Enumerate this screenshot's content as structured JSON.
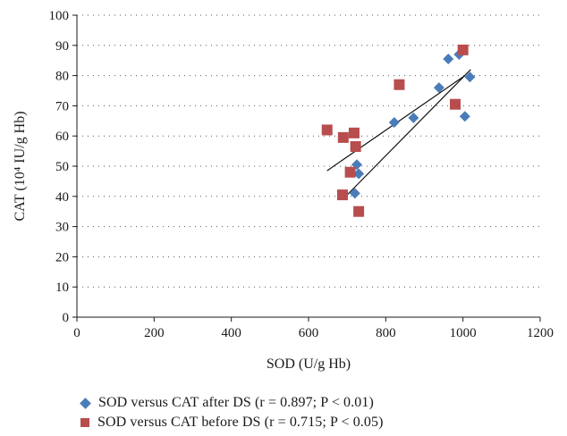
{
  "chart_data": {
    "type": "scatter",
    "xlabel": "SOD (U/g Hb)",
    "ylabel": "CAT (10⁴ IU/g Hb)",
    "xlim": [
      0,
      1200
    ],
    "ylim": [
      0,
      100
    ],
    "xticks": [
      "0",
      "200",
      "400",
      "600",
      "800",
      "1000",
      "1200"
    ],
    "yticks": [
      "0",
      "10",
      "20",
      "30",
      "40",
      "50",
      "60",
      "70",
      "80",
      "90",
      "100"
    ],
    "grid": "horizontal dotted",
    "legend_position": "bottom",
    "series": [
      {
        "name": "SOD versus CAT after DS (r = 0.897; P < 0.01)",
        "marker": "diamond",
        "color": "#4a7cb9",
        "points": [
          [
            720,
            41
          ],
          [
            725,
            50.5
          ],
          [
            730,
            47.5
          ],
          [
            822,
            64.5
          ],
          [
            872,
            66
          ],
          [
            938,
            76
          ],
          [
            962,
            85.5
          ],
          [
            990,
            87
          ],
          [
            1005,
            66.5
          ],
          [
            1018,
            79.5
          ]
        ],
        "trendline": [
          [
            700,
            40.5
          ],
          [
            1020,
            82
          ]
        ]
      },
      {
        "name": "SOD versus CAT before DS (r = 0.715; P < 0.05)",
        "marker": "square",
        "color": "#b84d4d",
        "points": [
          [
            648,
            62
          ],
          [
            688,
            40.5
          ],
          [
            690,
            59.5
          ],
          [
            708,
            48
          ],
          [
            718,
            61
          ],
          [
            722,
            56.5
          ],
          [
            730,
            35
          ],
          [
            835,
            77
          ],
          [
            980,
            70.5
          ],
          [
            1000,
            88.5
          ]
        ],
        "trendline": [
          [
            648,
            48.5
          ],
          [
            1005,
            80
          ]
        ]
      }
    ]
  },
  "legend": {
    "series_a": "SOD versus CAT after DS (r = 0.897; P < 0.01)",
    "series_b": "SOD versus CAT before DS (r = 0.715; P < 0.05)"
  }
}
